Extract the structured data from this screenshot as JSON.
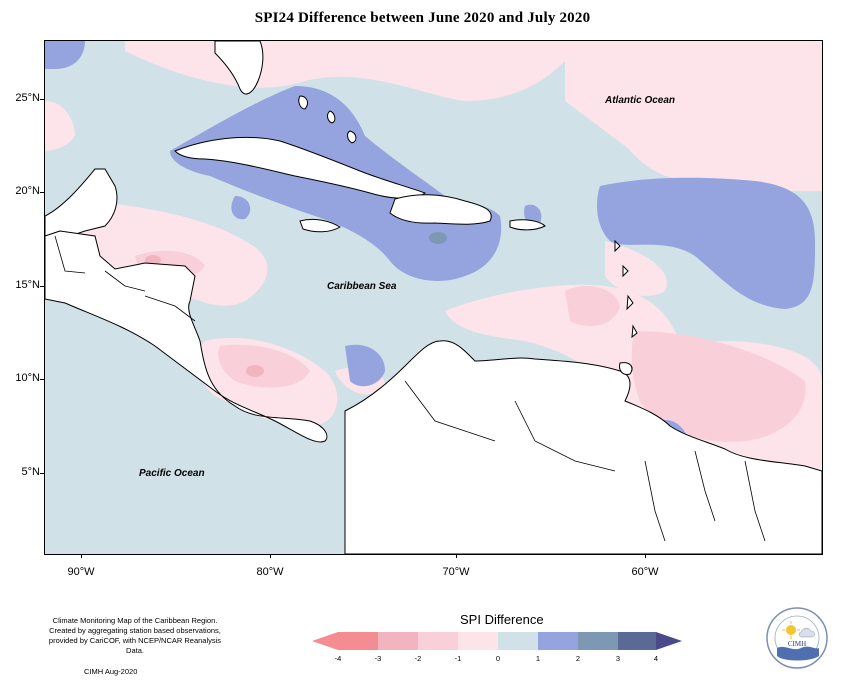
{
  "title": "SPI24 Difference between June 2020 and July 2020",
  "map": {
    "lat_ticks": [
      "25°N",
      "20°N",
      "15°N",
      "10°N",
      "5°N"
    ],
    "lon_ticks": [
      "90°W",
      "80°W",
      "70°W",
      "60°W"
    ],
    "region_labels": {
      "atlantic": "Atlantic Ocean",
      "caribbean": "Caribbean Sea",
      "pacific": "Pacific Ocean"
    },
    "colors": {
      "land": "#ffffff",
      "coast": "#000000",
      "neutral_low": "#fce4ea",
      "neutral_high": "#d0e1e8",
      "pos_1_2": "#95a4df",
      "pos_2_3": "#7d98b2",
      "neg_1_2": "#f9cfd9",
      "neg_2_3": "#f2b4bf"
    }
  },
  "legend": {
    "title": "SPI Difference",
    "labels": [
      "-4",
      "-3",
      "-2",
      "-1",
      "0",
      "1",
      "2",
      "3",
      "4"
    ],
    "colors": [
      "#f48c91",
      "#f2b4bf",
      "#f9cfd9",
      "#fce4ea",
      "#d0e1e8",
      "#95a4df",
      "#7d98b2",
      "#5b6a94"
    ]
  },
  "credits": {
    "line1": "Climate Monitoring Map of the Caribbean Region.",
    "line2": "Created by aggregating station based observations,",
    "line3": "provided by CariCOF, with NCEP/NCAR Reanalysis Data.",
    "date": "CIMH Aug-2020"
  },
  "logo": {
    "text": "CIMH"
  }
}
